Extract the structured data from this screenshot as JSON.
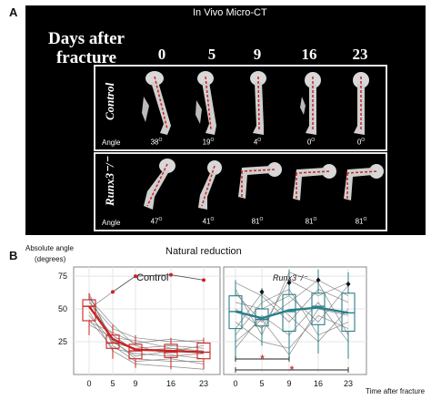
{
  "panelA": {
    "letter": "A",
    "title": "In Vivo Micro-CT",
    "days_header_line1": "Days after",
    "days_header_line2": "fracture",
    "days": [
      "0",
      "5",
      "9",
      "16",
      "23"
    ],
    "control_label": "Control",
    "runx_label": "Runx3⁻/⁻",
    "angle_label": "Angle",
    "control_angles": [
      "38",
      "19",
      "4",
      "0",
      "0"
    ],
    "runx_angles": [
      "47",
      "41",
      "81",
      "81",
      "81"
    ],
    "angle_unit": "O",
    "colors": {
      "background": "#000000",
      "dash": "#cc2222",
      "bone": "#d8d8d8"
    }
  },
  "panelB": {
    "letter": "B",
    "ylabel_line1": "Absolute  angle",
    "ylabel_line2": "(degrees)",
    "title": "Natural reduction",
    "xlabel": "Time after fracture",
    "control_label": "Control",
    "runx_label": "Runx3⁻/⁻",
    "significance_marker": "*",
    "colors": {
      "control": "#cc2222",
      "runx": "#2a7f8a",
      "individual": "#777777"
    }
  },
  "chart_data": [
    {
      "type": "box",
      "title": "Control",
      "xlabel": "Time after fracture",
      "ylabel": "Absolute angle (degrees)",
      "x_ticks": [
        0,
        5,
        9,
        16,
        23
      ],
      "y_ticks": [
        25,
        50,
        75
      ],
      "ylim": [
        0,
        82
      ],
      "boxes": [
        {
          "x": 0,
          "q1": 41,
          "median": 52,
          "q3": 57,
          "whisker_low": 30,
          "whisker_high": 62
        },
        {
          "x": 5,
          "q1": 20,
          "median": 24,
          "q3": 30,
          "whisker_low": 12,
          "whisker_high": 38
        },
        {
          "x": 9,
          "q1": 12,
          "median": 18,
          "q3": 23,
          "whisker_low": 5,
          "whisker_high": 30
        },
        {
          "x": 16,
          "q1": 13,
          "median": 17,
          "q3": 23,
          "whisker_low": 4,
          "whisker_high": 28
        },
        {
          "x": 23,
          "q1": 12,
          "median": 17,
          "q3": 24,
          "whisker_low": 4,
          "whisker_high": 28
        }
      ],
      "mean_line": [
        52,
        27,
        19,
        18,
        17
      ],
      "outliers": [
        {
          "x": 5,
          "y": 63
        },
        {
          "x": 9,
          "y": 75
        },
        {
          "x": 16,
          "y": 76
        },
        {
          "x": 23,
          "y": 72
        }
      ],
      "individual_lines": [
        [
          58,
          38,
          22,
          15,
          12
        ],
        [
          52,
          30,
          18,
          20,
          16
        ],
        [
          45,
          25,
          14,
          18,
          22
        ],
        [
          62,
          22,
          10,
          12,
          8
        ],
        [
          38,
          28,
          26,
          20,
          18
        ],
        [
          48,
          18,
          8,
          6,
          4
        ],
        [
          55,
          35,
          28,
          25,
          26
        ],
        [
          42,
          20,
          16,
          14,
          16
        ],
        [
          60,
          26,
          12,
          10,
          10
        ],
        [
          50,
          63,
          75,
          76,
          72
        ],
        [
          40,
          32,
          24,
          27,
          24
        ],
        [
          57,
          24,
          20,
          22,
          20
        ]
      ]
    },
    {
      "type": "box",
      "title": "Runx3⁻/⁻",
      "xlabel": "Time after fracture",
      "x_ticks": [
        0,
        5,
        9,
        16,
        23
      ],
      "ylim": [
        0,
        82
      ],
      "boxes": [
        {
          "x": 0,
          "q1": 35,
          "median": 48,
          "q3": 60,
          "whisker_low": 10,
          "whisker_high": 72
        },
        {
          "x": 5,
          "q1": 37,
          "median": 42,
          "q3": 50,
          "whisker_low": 22,
          "whisker_high": 66
        },
        {
          "x": 9,
          "q1": 33,
          "median": 48,
          "q3": 61,
          "whisker_low": 12,
          "whisker_high": 80
        },
        {
          "x": 16,
          "q1": 38,
          "median": 52,
          "q3": 62,
          "whisker_low": 16,
          "whisker_high": 80
        },
        {
          "x": 23,
          "q1": 33,
          "median": 47,
          "q3": 62,
          "whisker_low": 12,
          "whisker_high": 78
        }
      ],
      "mean_line": [
        48,
        43,
        49,
        51,
        47
      ],
      "mean_points": [
        {
          "x": 5,
          "y": 63
        },
        {
          "x": 9,
          "y": 70
        },
        {
          "x": 16,
          "y": 72
        },
        {
          "x": 23,
          "y": 69
        }
      ],
      "individual_lines": [
        [
          70,
          60,
          40,
          65,
          55
        ],
        [
          30,
          55,
          65,
          30,
          40
        ],
        [
          50,
          35,
          72,
          60,
          70
        ],
        [
          20,
          45,
          30,
          55,
          25
        ],
        [
          62,
          40,
          55,
          72,
          60
        ],
        [
          40,
          25,
          20,
          45,
          35
        ],
        [
          55,
          50,
          60,
          40,
          68
        ],
        [
          35,
          62,
          45,
          25,
          50
        ],
        [
          65,
          30,
          78,
          70,
          30
        ],
        [
          25,
          42,
          15,
          50,
          45
        ]
      ],
      "significance_brackets": [
        {
          "from": 0,
          "to": 9,
          "label": "*"
        },
        {
          "from": 0,
          "to": 23,
          "label": "*"
        }
      ]
    }
  ]
}
